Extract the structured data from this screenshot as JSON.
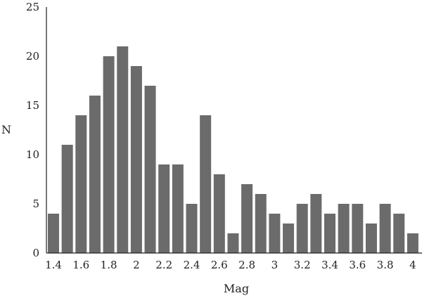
{
  "chart_data": {
    "type": "bar",
    "title": "",
    "xlabel": "Mag",
    "ylabel": "N",
    "ylim": [
      0,
      25
    ],
    "yticks": [
      0,
      5,
      10,
      15,
      20,
      25
    ],
    "xticks": [
      "1.4",
      "1.6",
      "1.8",
      "2",
      "2.2",
      "2.4",
      "2.6",
      "2.8",
      "3",
      "3.2",
      "3.4",
      "3.6",
      "3.8",
      "4"
    ],
    "x": [
      1.4,
      1.5,
      1.6,
      1.7,
      1.8,
      1.9,
      2.0,
      2.1,
      2.2,
      2.3,
      2.4,
      2.5,
      2.6,
      2.7,
      2.8,
      2.9,
      3.0,
      3.1,
      3.2,
      3.3,
      3.4,
      3.5,
      3.6,
      3.7,
      3.8,
      3.9,
      4.0
    ],
    "values": [
      4,
      11,
      14,
      16,
      20,
      21,
      19,
      17,
      9,
      9,
      5,
      14,
      8,
      2,
      7,
      6,
      4,
      3,
      5,
      6,
      4,
      5,
      5,
      3,
      5,
      4,
      2
    ],
    "bar_color": "#6b6b6b",
    "grid": false,
    "legend": "none"
  }
}
